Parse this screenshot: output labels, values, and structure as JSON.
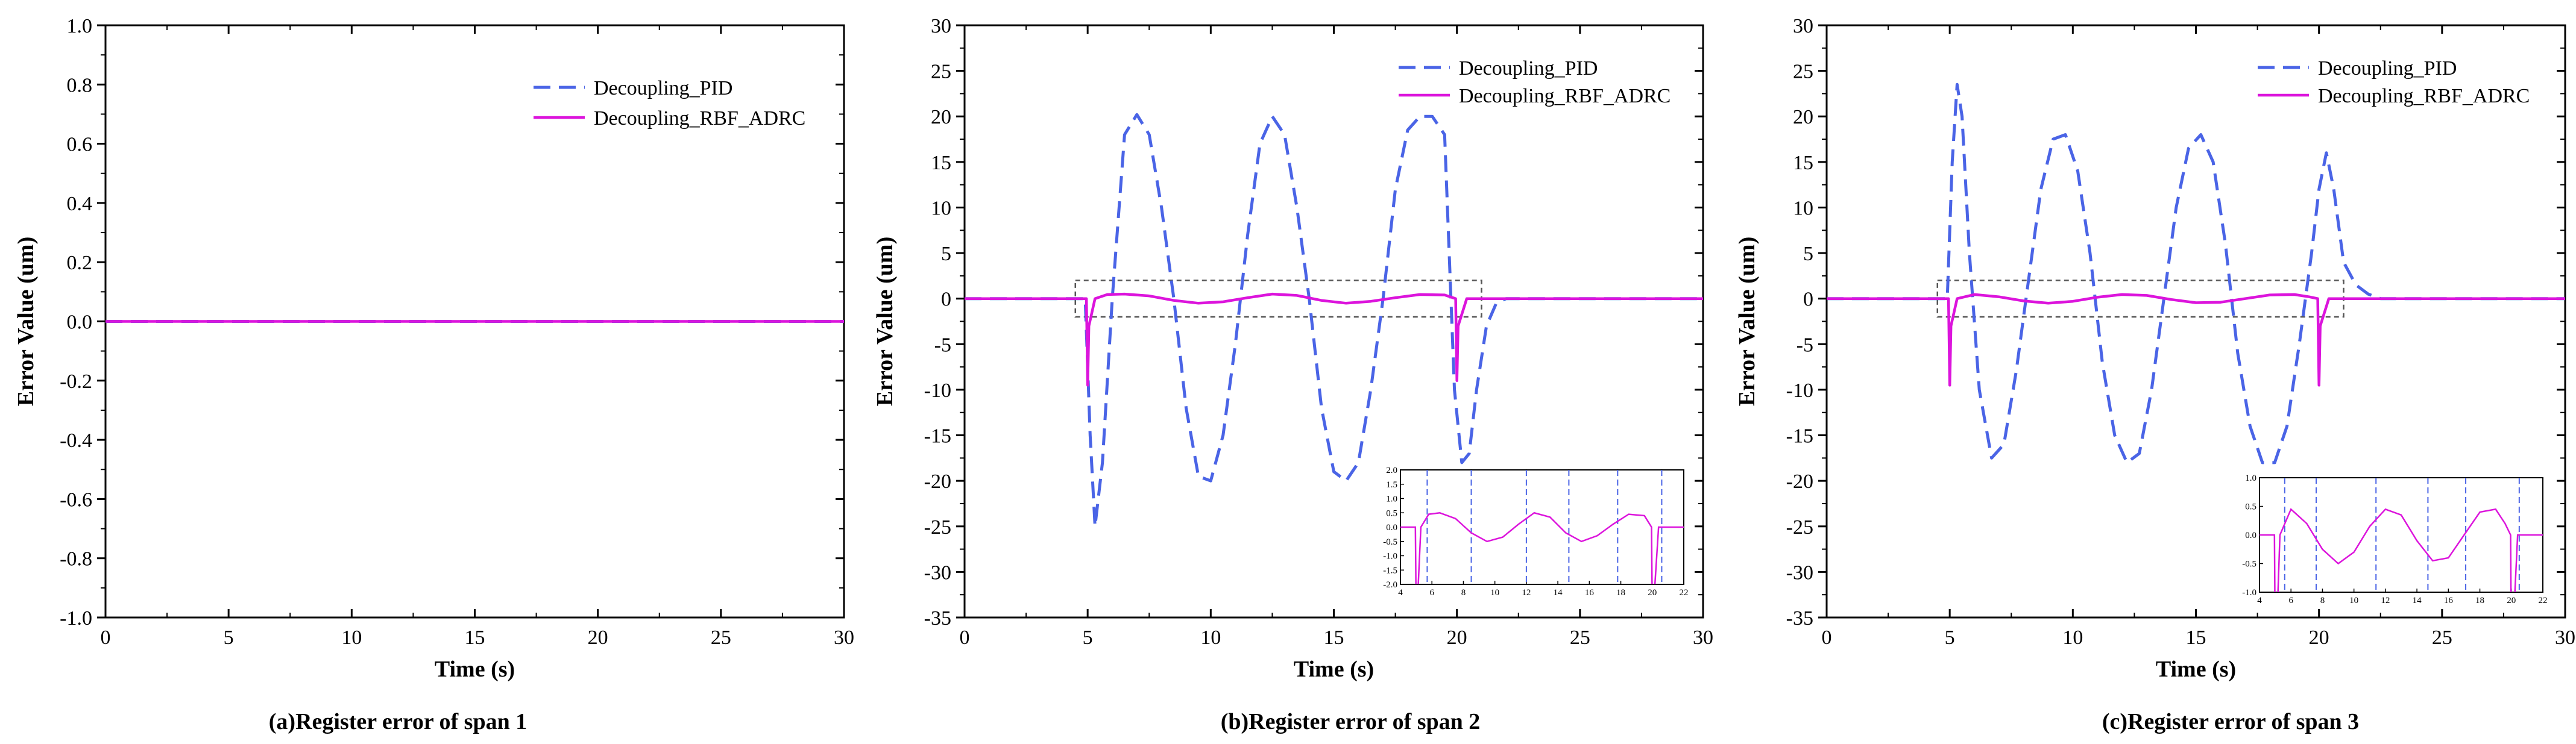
{
  "colors": {
    "pid": "#4a64e6",
    "rbf": "#dc14dc",
    "axis": "#000000",
    "zoom_box": "#555555"
  },
  "chart_data": [
    {
      "type": "line",
      "caption": "(a)Register error of span 1",
      "xlabel": "Time (s)",
      "ylabel": "Error Value (um)",
      "xlim": [
        0,
        30
      ],
      "ylim": [
        -1.0,
        1.0
      ],
      "xticks": [
        0,
        5,
        10,
        15,
        20,
        25,
        30
      ],
      "xtick_labels": [
        "0",
        "5",
        "10",
        "15",
        "20",
        "25",
        "30"
      ],
      "yticks": [
        -1.0,
        -0.8,
        -0.6,
        -0.4,
        -0.2,
        0.0,
        0.2,
        0.4,
        0.6,
        0.8,
        1.0
      ],
      "ytick_labels": [
        "-1.0",
        "-0.8",
        "-0.6",
        "-0.4",
        "-0.2",
        "0.0",
        "0.2",
        "0.4",
        "0.6",
        "0.8",
        "1.0"
      ],
      "legend": [
        "Decoupling_PID",
        "Decoupling_RBF_ADRC"
      ],
      "legend_position": "top-right",
      "series": [
        {
          "name": "Decoupling_PID",
          "style": "dashed",
          "x": [
            0,
            30
          ],
          "y": [
            0,
            0
          ]
        },
        {
          "name": "Decoupling_RBF_ADRC",
          "style": "solid",
          "x": [
            0,
            30
          ],
          "y": [
            0,
            0
          ]
        }
      ]
    },
    {
      "type": "line",
      "caption": "(b)Register error of span 2",
      "xlabel": "Time (s)",
      "ylabel": "Error Value (um)",
      "xlim": [
        0,
        30
      ],
      "ylim": [
        -35,
        30
      ],
      "xticks": [
        0,
        5,
        10,
        15,
        20,
        25,
        30
      ],
      "xtick_labels": [
        "0",
        "5",
        "10",
        "15",
        "20",
        "25",
        "30"
      ],
      "yticks": [
        -35,
        -30,
        -25,
        -20,
        -15,
        -10,
        -5,
        0,
        5,
        10,
        15,
        20,
        25,
        30
      ],
      "ytick_labels": [
        "-35",
        "-30",
        "-25",
        "-20",
        "-15",
        "-10",
        "-5",
        "0",
        "5",
        "10",
        "15",
        "20",
        "25",
        "30"
      ],
      "legend": [
        "Decoupling_PID",
        "Decoupling_RBF_ADRC"
      ],
      "legend_position": "top-right",
      "zoom_region": {
        "x": [
          4.5,
          21.0
        ],
        "y": [
          -2,
          2
        ]
      },
      "series": [
        {
          "name": "Decoupling_PID",
          "style": "dashed",
          "x": [
            0,
            4.9,
            5.1,
            5.3,
            5.6,
            6.0,
            6.5,
            7.0,
            7.5,
            8.0,
            8.5,
            9.0,
            9.5,
            10.0,
            10.5,
            11.0,
            11.5,
            12.0,
            12.5,
            13.0,
            13.5,
            14.0,
            14.5,
            15.0,
            15.5,
            16.0,
            16.5,
            17.0,
            17.5,
            18.0,
            18.5,
            19.0,
            19.5,
            19.9,
            20.2,
            20.5,
            20.8,
            21.2,
            21.6,
            22.0,
            22.5,
            30
          ],
          "y": [
            0,
            0,
            -15,
            -25,
            -18,
            0,
            18,
            20.2,
            18,
            10,
            0,
            -12,
            -19.5,
            -20,
            -15,
            -5,
            7,
            17,
            20,
            18,
            10,
            0,
            -12,
            -19,
            -20,
            -18,
            -10,
            0,
            12,
            18.5,
            20,
            20,
            18,
            -10,
            -18,
            -17,
            -10,
            -3,
            -0.5,
            0,
            0,
            0
          ]
        },
        {
          "name": "Decoupling_RBF_ADRC",
          "style": "solid",
          "x": [
            0,
            4.95,
            5.0,
            5.05,
            5.3,
            5.8,
            6.5,
            7.5,
            8.5,
            9.5,
            10.5,
            11.5,
            12.5,
            13.5,
            14.5,
            15.5,
            16.5,
            17.5,
            18.5,
            19.5,
            19.95,
            20.0,
            20.05,
            20.4,
            21.0,
            30
          ],
          "y": [
            0,
            0,
            -9.5,
            -3,
            0,
            0.45,
            0.5,
            0.3,
            -0.2,
            -0.5,
            -0.35,
            0.1,
            0.5,
            0.35,
            -0.2,
            -0.5,
            -0.3,
            0.1,
            0.45,
            0.4,
            0,
            -9,
            -3,
            0,
            0,
            0
          ]
        }
      ],
      "inset": {
        "xlim": [
          4,
          22
        ],
        "ylim": [
          -2.0,
          2.0
        ],
        "xticks": [
          4,
          6,
          8,
          10,
          12,
          14,
          16,
          18,
          20,
          22
        ],
        "xtick_labels": [
          "4",
          "6",
          "8",
          "10",
          "12",
          "14",
          "16",
          "18",
          "20",
          "22"
        ],
        "yticks": [
          -2.0,
          -1.5,
          -1.0,
          -0.5,
          0.0,
          0.5,
          1.0,
          1.5,
          2.0
        ],
        "ytick_labels": [
          "-2.0",
          "-1.5",
          "-1.0",
          "-0.5",
          "0.0",
          "0.5",
          "1.0",
          "1.5",
          "2.0"
        ],
        "pid_crossings": [
          5.7,
          8.5,
          12.0,
          14.7,
          17.8,
          20.6
        ]
      }
    },
    {
      "type": "line",
      "caption": "(c)Register error of span 3",
      "xlabel": "Time (s)",
      "ylabel": "Error Value (um)",
      "xlim": [
        0,
        30
      ],
      "ylim": [
        -35,
        30
      ],
      "xticks": [
        0,
        5,
        10,
        15,
        20,
        25,
        30
      ],
      "xtick_labels": [
        "0",
        "5",
        "10",
        "15",
        "20",
        "25",
        "30"
      ],
      "yticks": [
        -35,
        -30,
        -25,
        -20,
        -15,
        -10,
        -5,
        0,
        5,
        10,
        15,
        20,
        25,
        30
      ],
      "ytick_labels": [
        "-35",
        "-30",
        "-25",
        "-20",
        "-15",
        "-10",
        "-5",
        "0",
        "5",
        "10",
        "15",
        "20",
        "25",
        "30"
      ],
      "legend": [
        "Decoupling_PID",
        "Decoupling_RBF_ADRC"
      ],
      "legend_position": "top-right",
      "zoom_region": {
        "x": [
          4.5,
          21.0
        ],
        "y": [
          -2,
          2
        ]
      },
      "series": [
        {
          "name": "Decoupling_PID",
          "style": "dashed",
          "x": [
            0,
            4.9,
            5.1,
            5.3,
            5.5,
            5.8,
            6.2,
            6.7,
            7.2,
            7.7,
            8.2,
            8.7,
            9.2,
            9.7,
            10.2,
            10.7,
            11.2,
            11.7,
            12.2,
            12.7,
            13.2,
            13.7,
            14.2,
            14.7,
            15.2,
            15.7,
            16.2,
            16.7,
            17.2,
            17.7,
            18.2,
            18.7,
            19.2,
            19.7,
            20.0,
            20.3,
            20.6,
            21.0,
            21.5,
            22.0,
            22.5,
            23.0,
            30
          ],
          "y": [
            0,
            0,
            15,
            23.5,
            20,
            5,
            -10,
            -17.5,
            -16,
            -8,
            2,
            12,
            17.5,
            18,
            14,
            5,
            -7,
            -15,
            -18,
            -17,
            -10,
            0,
            10,
            16.5,
            18,
            15,
            6,
            -6,
            -14,
            -18,
            -18,
            -14,
            -5,
            5,
            12,
            16,
            12,
            4,
            1.5,
            0.5,
            0,
            0,
            0
          ]
        },
        {
          "name": "Decoupling_RBF_ADRC",
          "style": "solid",
          "x": [
            0,
            4.95,
            5.0,
            5.05,
            5.3,
            6.0,
            7.0,
            8.0,
            9.0,
            10.0,
            11.0,
            12.0,
            13.0,
            14.0,
            15.0,
            16.0,
            17.0,
            18.0,
            19.0,
            19.6,
            19.95,
            20.0,
            20.05,
            20.4,
            21.0,
            30
          ],
          "y": [
            0,
            0,
            -9.5,
            -3,
            0,
            0.45,
            0.2,
            -0.25,
            -0.5,
            -0.3,
            0.15,
            0.45,
            0.35,
            -0.1,
            -0.45,
            -0.4,
            0,
            0.4,
            0.45,
            0.2,
            0,
            -9.5,
            -3,
            0,
            0,
            0
          ]
        }
      ],
      "inset": {
        "xlim": [
          4,
          22
        ],
        "ylim": [
          -1.0,
          1.0
        ],
        "xticks": [
          4,
          6,
          8,
          10,
          12,
          14,
          16,
          18,
          20,
          22
        ],
        "xtick_labels": [
          "4",
          "6",
          "8",
          "10",
          "12",
          "14",
          "16",
          "18",
          "20",
          "22"
        ],
        "yticks": [
          -1.0,
          -0.5,
          0.0,
          0.5,
          1.0
        ],
        "ytick_labels": [
          "-1.0",
          "-0.5",
          "0.0",
          "0.5",
          "1.0"
        ],
        "pid_crossings": [
          5.6,
          7.6,
          11.4,
          14.7,
          17.1,
          20.5
        ]
      }
    }
  ]
}
